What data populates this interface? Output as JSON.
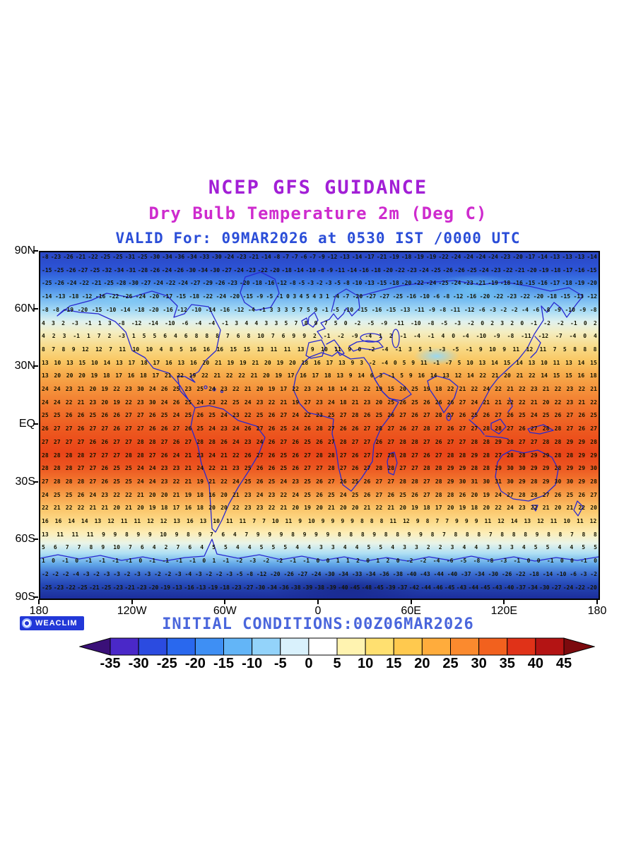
{
  "colors": {
    "title": "#A21FD6",
    "subtitle": "#CE2BCE",
    "valid_line": "#2B4ED8",
    "initial_line": "#4A66DC",
    "logo_bg": "#2238D8",
    "coastline": "#2828D0"
  },
  "footer": {
    "logo": "WEACLIM"
  },
  "chart_data": {
    "type": "heatmap",
    "title": "NCEP GFS GUIDANCE",
    "subtitle": "Dry Bulb Temperature 2m (Deg C)",
    "valid": "VALID For: 09MAR2026 at 0530 IST /0000 UTC",
    "initial_conditions": "INITIAL CONDITIONS:00Z06MAR2026",
    "units": "Deg C",
    "lat_ticks": [
      "90N",
      "60N",
      "30N",
      "EQ",
      "30S",
      "60S",
      "90S"
    ],
    "lon_ticks": [
      "180",
      "120W",
      "60W",
      "0",
      "60E",
      "120E",
      "180"
    ],
    "rows": [
      "-8 -23 -26 -21 -22 -25 -25 -31 -25 -30 -34 -36 -34 -33 -30 -24 -23 -21 -14 -8 -7 -7 -6 -7 -9 -12 -13 -14 -17 -21 -19 -18 -19 -19 -22 -24 -24 -24 -24 -23 -20 -17 -14 -13 -13 -13 -14",
      "-15 -25 -26 -27 -25 -32 -34 -31 -28 -26 -24 -26 -30 -34 -30 -27 -24 -23 -22 -20 -18 -14 -10 -8 -9 -11 -14 -16 -18 -20 -22 -23 -24 -25 -26 -26 -25 -24 -23 -22 -21 -20 -19 -18 -17 -16 -15",
      "-25 -26 -24 -22 -21 -25 -28 -30 -27 -24 -22 -24 -27 -29 -26 -23 -20 -18 -16 -12 -8 -5 -3 -2 -3 -5 -8 -10 -13 -15 -18 -20 -22 -24 -25 -24 -23 -21 -19 -18 -16 -15 -16 -17 -18 -19 -20",
      "-14 -13 -18 -12 -16 -22 -26 -24 -20 -17 -15 -18 -22 -24 -20 -15 -9 -5 -1 0 3 4 5 4 3 1 -4 -7 -20 -27 -27 -25 -16 -10 -6 -8 -12 -16 -20 -22 -23 -22 -20 -18 -15 -13 -12",
      "-8 -8 -19 -20 -15 -10 -14 -18 -20 -16 -12 -10 -14 -16 -12 -4 -1 3 3 3 5 7 5 9 -1 -5 -10 -15 -16 -15 -13 -11 -9 -8 -11 -12 -6 -3 -2 -2 -4 -6 -8 -9 -10 -9 -8",
      "4 3 2 -3 -1 1 3 -8 -12 -14 -10 -6 -4 -4 -1 3 4 4 3 3 5 7 8 9 7 5 0 -2 -5 -9 -11 -10 -8 -5 -3 -2 0 2 3 2 0 -1 -2 -2 -1 0 2",
      "4 2 3 -1 1 7 2 -3 1 5 5 6 4 6 8 8 8 7 6 8 10 7 6 9 9 2 -1 -2 -9 -4 1 2 -1 -4 -1 4 0 -4 -10 -9 -8 -11 -12 -7 -4 0 4",
      "8 7 8 9 12 12 7 11 10 10 4 8 5 16 16 16 15 15 13 11 11 13 9 10 11 9 0 -2 -4 -1 3 5 1 -3 -5 -1 9 10 9 11 12 11 7 5 8 8 8",
      "13 10 13 15 10 14 13 17 18 17 16 13 16 20 21 19 19 21 20 19 20 18 16 17 13 9 3 -2 -4 0 5 9 11 -1 -7 5 10 13 14 15 14 13 10 11 13 14 15",
      "13 20 20 20 19 18 17 16 18 17 21 22 19 22 21 22 22 21 20 19 17 16 17 18 13 9 14 6 3 -1 5 9 16 14 13 12 14 22 21 20 21 22 14 15 15 16 18",
      "24 24 23 21 20 19 22 23 30 24 26 25 23 25 24 23 22 21 20 19 17 22 23 24 18 14 21 22 19 15 20 25 19 18 22 21 22 24 22 21 22 23 21 22 23 22 21",
      "24 24 22 21 23 20 19 22 23 30 24 26 25 24 23 22 25 24 23 22 21 19 27 23 24 18 21 23 20 25 26 25 26 26 26 27 24 21 21 22 22 21 20 22 23 21 22",
      "25 25 26 26 25 26 26 27 27 26 25 24 25 26 25 24 23 22 25 26 27 24 22 23 25 27 28 26 25 26 27 26 27 28 27 26 25 26 27 26 25 24 25 26 27 26 25",
      "26 27 27 26 27 27 26 27 27 26 26 27 26 25 24 23 24 26 27 26 25 24 26 28 27 26 26 27 28 27 26 27 28 27 26 27 27 28 28 27 26 27 28 28 27 26 27",
      "27 27 27 27 26 26 27 27 28 28 27 26 27 28 28 26 24 23 24 26 27 26 25 26 27 28 27 27 26 27 28 28 27 26 27 27 28 28 29 28 27 27 28 28 29 29 28",
      "28 28 28 28 27 27 27 28 28 27 26 24 21 23 24 21 22 26 27 26 25 26 27 28 28 27 26 27 27 28 28 27 26 27 28 28 29 28 27 28 28 29 29 28 28 29 29",
      "28 28 28 27 27 26 25 25 24 24 23 23 21 24 22 21 23 25 26 26 25 26 27 27 28 27 26 27 28 28 27 27 28 28 29 29 28 28 29 30 30 29 29 28 29 29 30",
      "27 28 28 28 27 26 25 25 24 24 23 22 21 19 21 22 24 25 26 25 24 23 25 26 27 26 25 26 27 27 28 28 27 28 29 30 31 30 31 30 29 28 29 30 30 29 28",
      "24 25 25 26 24 23 22 22 21 20 20 21 19 18 16 20 21 23 24 23 22 24 25 26 25 24 25 26 27 26 25 26 27 28 28 26 20 19 24 27 28 28 27 26 25 26 27",
      "22 21 22 22 21 21 20 21 20 19 18 17 16 18 20 20 22 23 23 22 21 20 19 20 21 20 20 21 22 21 20 19 18 17 20 19 18 20 22 24 23 22 21 20 21 22 20",
      "16 16 14 14 13 12 11 11 12 12 13 16 13 10 11 11 7 7 10 11 9 10 9 9 9 9 8 8 8 11 12 9 8 7 7 9 9 9 11 12 14 13 12 11 10 11 12",
      "13 11 11 11 9 9 8 9 9 10 9 8 9 7 6 4 7 9 9 9 8 9 9 9 8 8 8 9 8 8 9 9 8 7 8 8 8 7 8 8 8 9 8 8 7 8 8",
      "5 6 7 7 8 9 10 7 6 4 2 7 6 4 5 5 4 4 5 5 5 4 4 3 3 4 4 5 5 4 3 3 2 2 3 4 4 3 3 3 4 5 5 4 4 5 5",
      "1 0 -1 0 -1 -1 -1 -1 0 -1 -1 -1 -1 0 1 -1 -2 -3 -2 -2 -1 -1 0 0 1 1 2 0 1 2 0 -2 -2 -4 -6 -5 -8 -8 -3 -1 0 0 -1 0 0 -1 0",
      "-2 -2 -2 -4 -3 -2 -3 -3 -2 -3 -3 -2 -2 -3 -4 -3 -2 -2 -3 -5 -8 -12 -20 -26 -27 -24 -30 -34 -33 -34 -36 -38 -40 -43 -44 -40 -37 -34 -30 -26 -22 -18 -14 -10 -6 -3 -2",
      "-25 -23 -22 -25 -21 -25 -23 -21 -23 -20 -19 -13 -16 -13 -19 -18 -23 -27 -30 -34 -36 -38 -39 -38 -39 -40 -45 -48 -45 -39 -37 -42 -44 -46 -45 -43 -44 -45 -43 -40 -37 -34 -30 -27 -24 -22 -20"
    ],
    "colorbar": {
      "ticks": [
        "-35",
        "-30",
        "-25",
        "-20",
        "-15",
        "-10",
        "-5",
        "0",
        "5",
        "10",
        "15",
        "20",
        "25",
        "30",
        "35",
        "40",
        "45"
      ],
      "colors": [
        "#4A28C8",
        "#2B4BE0",
        "#2968EE",
        "#3E8FF4",
        "#63B5F7",
        "#93D3FA",
        "#D9F1FC",
        "#FFFFFF",
        "#FFF3B0",
        "#FFE070",
        "#FFC94E",
        "#FFAC3C",
        "#FB8A2E",
        "#F2611E",
        "#E03218",
        "#B41414"
      ],
      "arrow_left": "#3A1078",
      "arrow_right": "#7C0A0E"
    }
  }
}
